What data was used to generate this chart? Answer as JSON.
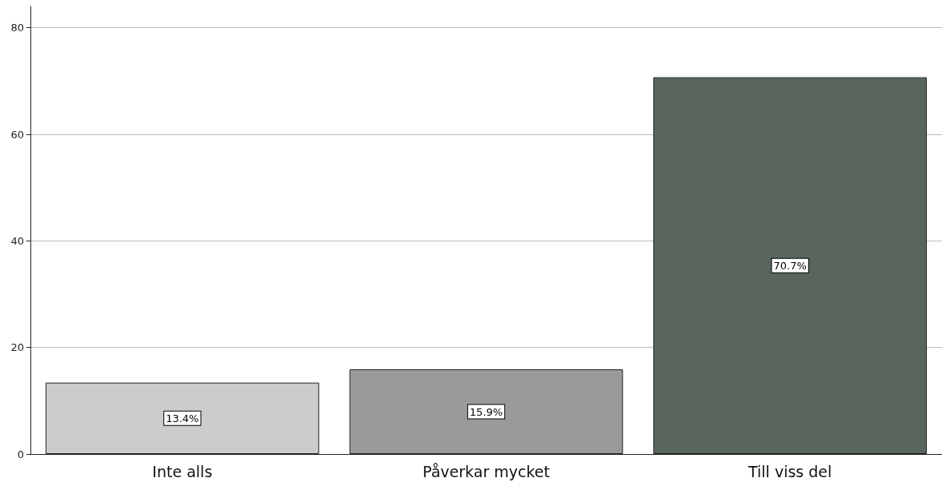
{
  "chart_data": {
    "type": "bar",
    "categories": [
      "Inte alls",
      "Påverkar mycket",
      "Till viss del"
    ],
    "values": [
      13.4,
      15.9,
      70.7
    ],
    "colors": [
      "#cccccc",
      "#9a9a9a",
      "#58665e"
    ],
    "value_labels": [
      "13.4%",
      "15.9%",
      "70.7%"
    ],
    "ylim": [
      0,
      84
    ],
    "yticks": [
      0,
      20,
      40,
      60,
      80
    ],
    "grid": "y"
  }
}
